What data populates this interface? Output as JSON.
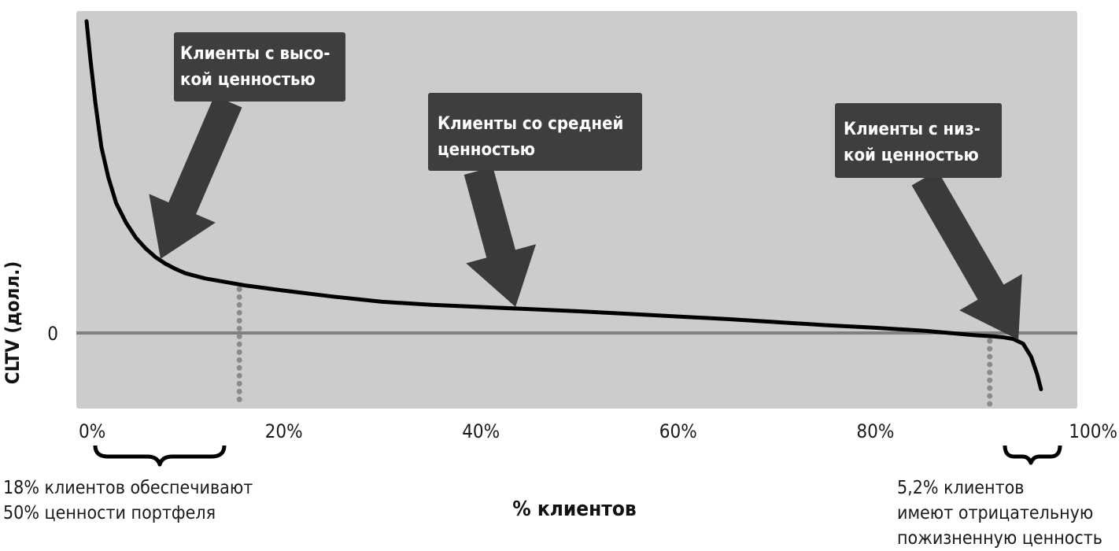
{
  "chart_data": {
    "type": "line",
    "xlabel": "% клиентов",
    "ylabel": "CLTV (долл.)",
    "xlim": [
      0,
      100
    ],
    "ylim": [
      -1.5,
      7.3
    ],
    "x_ticks": [
      "0%",
      "20%",
      "40%",
      "60%",
      "80%",
      "100%"
    ],
    "y_ticks": [
      "0"
    ],
    "series": [
      {
        "x": [
          0,
          0.4,
          0.9,
          1.5,
          2.2,
          3,
          4,
          5,
          6,
          7,
          8,
          9,
          10,
          12,
          14,
          16,
          20,
          25,
          30,
          35,
          40,
          45,
          50,
          55,
          60,
          65,
          70,
          75,
          80,
          85,
          90,
          92,
          93,
          94,
          95,
          95.8,
          96.4,
          96.8
        ],
        "y": [
          7.2,
          6.3,
          5.3,
          4.3,
          3.6,
          3.0,
          2.55,
          2.2,
          1.95,
          1.75,
          1.6,
          1.48,
          1.38,
          1.26,
          1.18,
          1.1,
          0.98,
          0.84,
          0.72,
          0.65,
          0.6,
          0.55,
          0.5,
          0.44,
          0.38,
          0.32,
          0.25,
          0.18,
          0.12,
          0.05,
          -0.05,
          -0.08,
          -0.1,
          -0.14,
          -0.25,
          -0.55,
          -0.95,
          -1.3
        ]
      }
    ],
    "reference_lines": {
      "x": [
        15.5,
        91.6
      ]
    },
    "annotations": [
      {
        "lines": [
          "Клиенты с высо-",
          "кой ценностью"
        ],
        "target_x": 7.5
      },
      {
        "lines": [
          "Клиенты со средней",
          "ценностью"
        ],
        "target_x": 43.5
      },
      {
        "lines": [
          "Клиенты с низ-",
          "кой ценностью"
        ],
        "target_x": 94.5
      }
    ]
  },
  "notes": {
    "left": [
      "18% клиентов обеспечивают",
      "50% ценности портфеля"
    ],
    "right": [
      "5,2% клиентов",
      "имеют отрицательную",
      "пожизненную ценность"
    ]
  },
  "colors": {
    "plot_bg": "#cccccc",
    "curve": "#000000",
    "zero_line": "#808080",
    "annotation_box": "#3e3e3e",
    "arrow": "#3a3a3a",
    "dots": "#8a8a8a"
  }
}
